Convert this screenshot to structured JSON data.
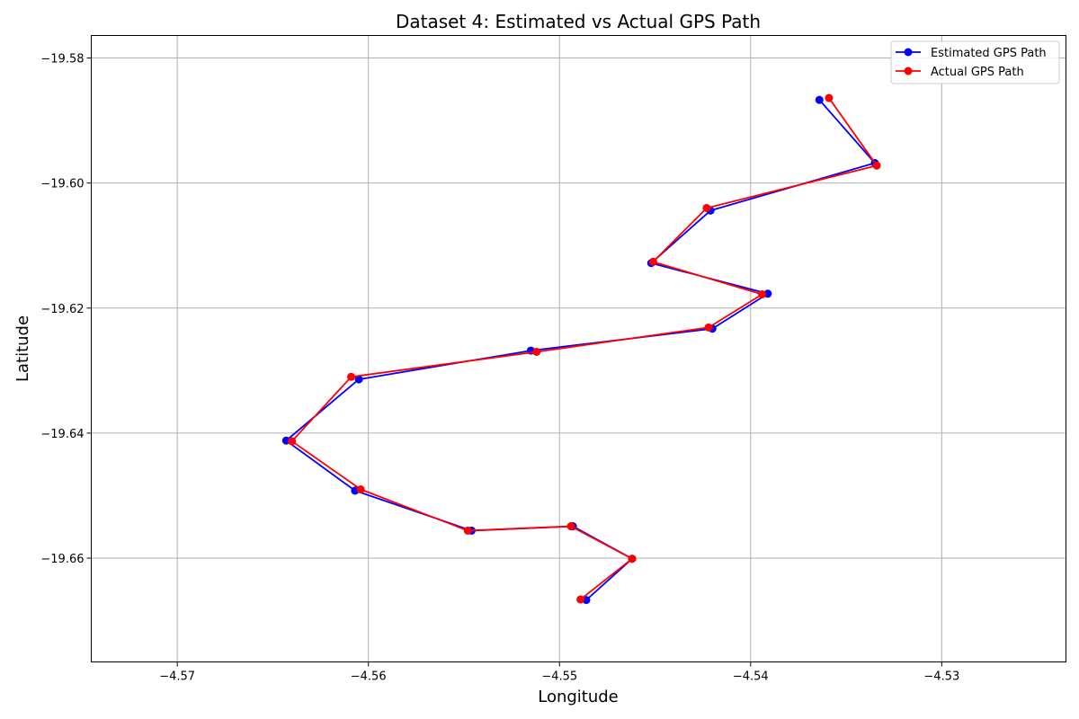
{
  "chart_data": {
    "type": "line",
    "title": "Dataset 4: Estimated vs Actual GPS Path",
    "xlabel": "Longitude",
    "ylabel": "Latitude",
    "xlim": [
      -4.5745,
      -4.5235
    ],
    "ylim": [
      -19.6766,
      -19.5764
    ],
    "x_ticks": [
      -4.57,
      -4.56,
      -4.55,
      -4.54,
      -4.53
    ],
    "x_tick_labels": [
      "−4.57",
      "−4.56",
      "−4.55",
      "−4.54",
      "−4.53"
    ],
    "y_ticks": [
      -19.58,
      -19.6,
      -19.62,
      -19.64,
      -19.66
    ],
    "y_tick_labels": [
      "−19.58",
      "−19.60",
      "−19.62",
      "−19.64",
      "−19.66"
    ],
    "grid": true,
    "legend_position": "top-right",
    "series": [
      {
        "name": "Estimated GPS Path",
        "color": "#0000ff",
        "marker": "circle",
        "x": [
          -4.5364,
          -4.5335,
          -4.5421,
          -4.5452,
          -4.5391,
          -4.542,
          -4.5515,
          -4.5605,
          -4.5643,
          -4.5607,
          -4.5546,
          -4.5493,
          -4.5462,
          -4.5486
        ],
        "y": [
          -19.5867,
          -19.5968,
          -19.6044,
          -19.6128,
          -19.6177,
          -19.6233,
          -19.6268,
          -19.6314,
          -19.6412,
          -19.6492,
          -19.6556,
          -19.6549,
          -19.6601,
          -19.6667
        ]
      },
      {
        "name": "Actual GPS Path",
        "color": "#ff0000",
        "marker": "circle",
        "x": [
          -4.5359,
          -4.5334,
          -4.5423,
          -4.5451,
          -4.5394,
          -4.5422,
          -4.5512,
          -4.5609,
          -4.564,
          -4.5604,
          -4.5548,
          -4.5494,
          -4.5462,
          -4.5489
        ],
        "y": [
          -19.5864,
          -19.5972,
          -19.604,
          -19.6126,
          -19.6178,
          -19.6231,
          -19.627,
          -19.631,
          -19.6413,
          -19.649,
          -19.6556,
          -19.6549,
          -19.6601,
          -19.6666
        ]
      }
    ]
  }
}
